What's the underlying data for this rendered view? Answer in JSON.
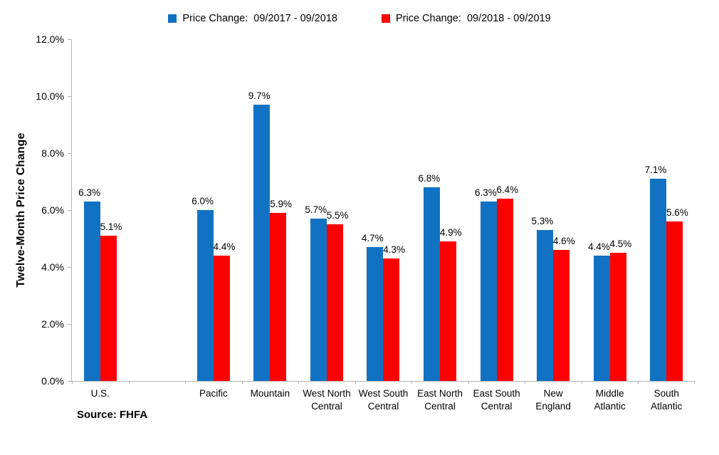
{
  "chart_data": {
    "type": "bar",
    "categories": [
      "U.S.",
      "Pacific",
      "Mountain",
      "West North\nCentral",
      "West South\nCentral",
      "East North\nCentral",
      "East South\nCentral",
      "New\nEngland",
      "Middle\nAtlantic",
      "South\nAtlantic"
    ],
    "series": [
      {
        "name": "Price Change:  09/2017 - 09/2018",
        "color": "#1172c4",
        "values": [
          6.3,
          6.0,
          9.7,
          5.7,
          4.7,
          6.8,
          6.3,
          5.3,
          4.4,
          7.1
        ]
      },
      {
        "name": "Price Change:  09/2018 - 09/2019",
        "color": "#ff0000",
        "values": [
          5.1,
          4.4,
          5.9,
          5.5,
          4.3,
          4.9,
          6.4,
          4.6,
          4.5,
          5.6
        ]
      }
    ],
    "title": "",
    "xlabel": "",
    "ylabel": "Twelve-Month Price Change",
    "ylim": [
      0,
      12
    ],
    "y_tick_labels": [
      "0.0%",
      "2.0%",
      "4.0%",
      "6.0%",
      "8.0%",
      "10.0%",
      "12.0%"
    ],
    "data_label_format": "0.0%",
    "grid": false,
    "legend_position": "top",
    "gap_after_first_category": true,
    "axis_color": "#b3b3b3"
  },
  "source_note": "Source: FHFA"
}
